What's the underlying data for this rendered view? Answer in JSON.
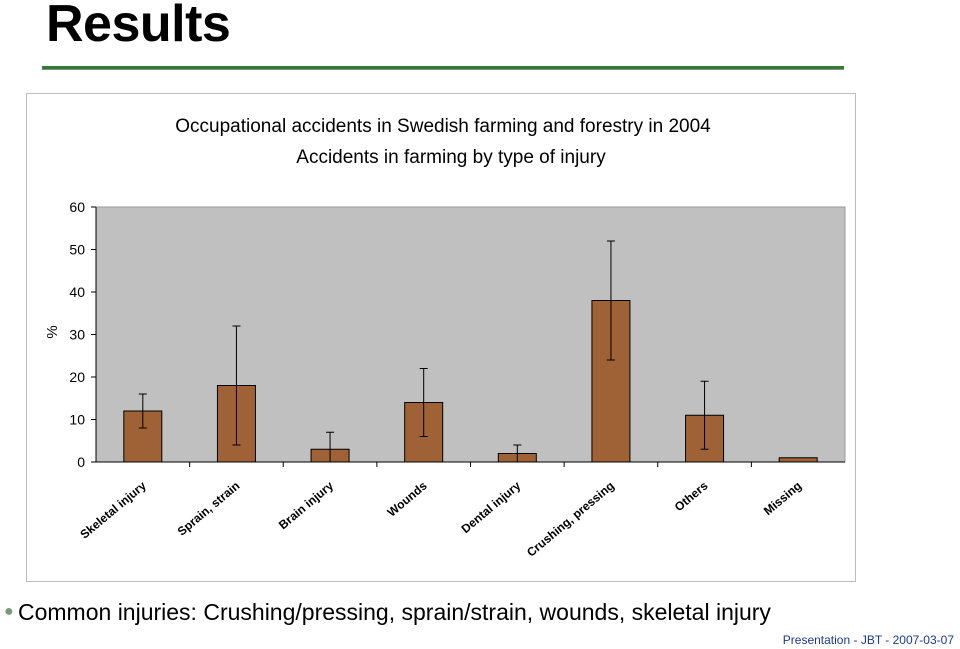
{
  "slide": {
    "title": "Results",
    "summary": "Common injuries: Crushing/pressing, sprain/strain, wounds, skeletal injury",
    "footer": "Presentation  -  JBT  -  2007-03-07"
  },
  "colors": {
    "bar": "#9e6236",
    "plot_bg": "#c0c0c0",
    "accent_rule": "#2e7d32",
    "footer_text": "#1a3a8a"
  },
  "chart_data": {
    "type": "bar",
    "title": "Occupational accidents in Swedish farming and forestry in 2004",
    "subtitle": "Accidents in farming by type of injury",
    "xlabel": "",
    "ylabel": "%",
    "ylim": [
      0,
      60
    ],
    "yticks": [
      0,
      10,
      20,
      30,
      40,
      50,
      60
    ],
    "grid": false,
    "legend": "none",
    "categories": [
      "Skeletal injury",
      "Sprain, strain",
      "Brain injury",
      "Wounds",
      "Dental injury",
      "Crushing, pressing",
      "Others",
      "Missing"
    ],
    "values": [
      12,
      18,
      3,
      14,
      2,
      38,
      11,
      1
    ],
    "error_low": [
      8,
      4,
      0,
      6,
      0,
      24,
      3,
      1
    ],
    "error_high": [
      16,
      32,
      7,
      22,
      4,
      52,
      19,
      1
    ]
  }
}
